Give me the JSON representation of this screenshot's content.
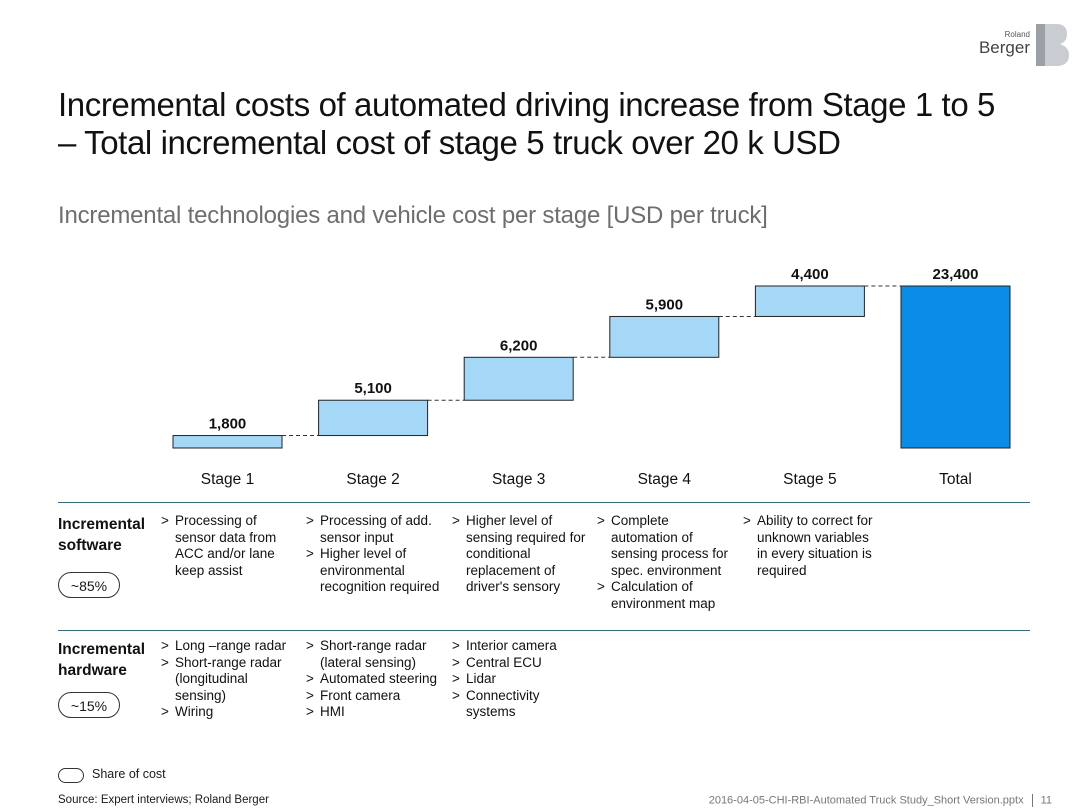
{
  "logo": {
    "line1": "Roland",
    "line2": "Berger"
  },
  "title_line1": "Incremental costs of automated driving increase from Stage 1 to 5",
  "title_line2": "– Total incremental cost of stage 5 truck over 20 k USD",
  "subtitle": "Incremental technologies and vehicle cost per stage [USD per truck]",
  "chart_data": {
    "type": "bar",
    "subtype": "waterfall",
    "categories": [
      "Stage 1",
      "Stage 2",
      "Stage 3",
      "Stage 4",
      "Stage 5",
      "Total"
    ],
    "values": [
      1800,
      5100,
      6200,
      5900,
      4400,
      23400
    ],
    "data_labels": [
      "1,800",
      "5,100",
      "6,200",
      "5,900",
      "4,400",
      "23,400"
    ],
    "ylim": [
      0,
      23400
    ],
    "grid": false,
    "colors": {
      "increment": "#a5d8f7",
      "total": "#0a8de8",
      "edge": "#222222"
    }
  },
  "sections": {
    "software": {
      "label_line1": "Incremental",
      "label_line2": "software",
      "share": "~85%",
      "columns": [
        [
          "Processing of sensor data from ACC and/or lane keep assist"
        ],
        [
          "Processing of add. sensor input",
          "Higher level of environmental recognition required"
        ],
        [
          "Higher level of sensing required for conditional replacement of driver's sensory"
        ],
        [
          "Complete automation of sensing process for spec. environment",
          "Calculation of environment map"
        ],
        [
          "Ability to correct for unknown variables in every situation is required"
        ]
      ]
    },
    "hardware": {
      "label_line1": "Incremental",
      "label_line2": "hardware",
      "share": "~15%",
      "columns": [
        [
          "Long –range radar",
          "Short-range radar (longitudinal sensing)",
          "Wiring"
        ],
        [
          "Short-range radar (lateral sensing)",
          "Automated steering",
          "Front camera",
          "HMI"
        ],
        [
          "Interior camera",
          "Central ECU",
          "Lidar",
          "Connectivity systems"
        ]
      ]
    }
  },
  "legend": {
    "label": "Share of cost"
  },
  "source": "Source: Expert interviews; Roland Berger",
  "footer": {
    "file": "2016-04-05-CHI-RBI-Automated Truck Study_Short Version.pptx",
    "page": "11"
  }
}
